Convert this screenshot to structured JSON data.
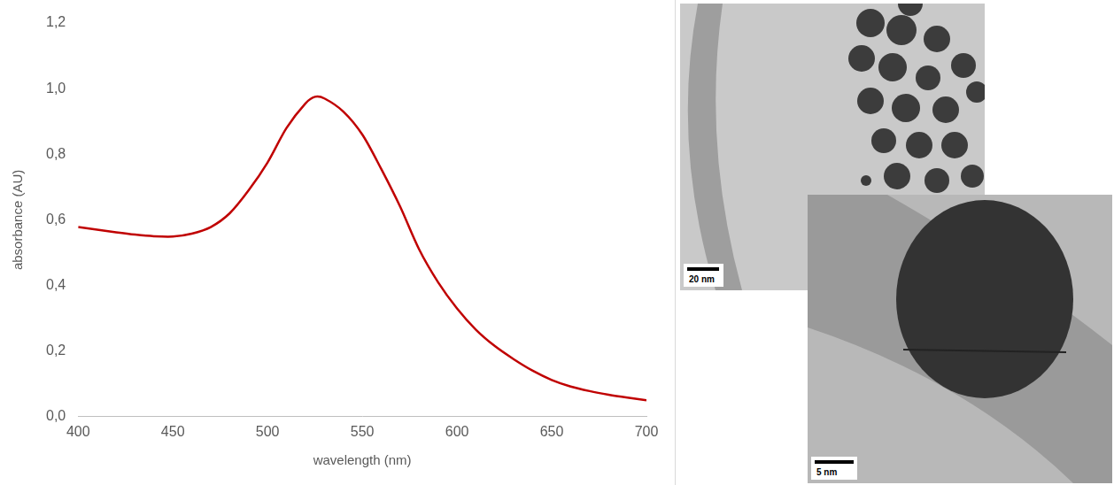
{
  "chart_data": {
    "type": "line",
    "x": [
      400,
      410,
      420,
      430,
      440,
      450,
      460,
      470,
      480,
      490,
      500,
      510,
      520,
      525,
      530,
      540,
      550,
      560,
      570,
      580,
      590,
      600,
      610,
      620,
      630,
      640,
      650,
      660,
      670,
      680,
      690,
      700
    ],
    "values": [
      0.578,
      0.57,
      0.562,
      0.555,
      0.55,
      0.549,
      0.558,
      0.578,
      0.62,
      0.69,
      0.775,
      0.88,
      0.955,
      0.975,
      0.97,
      0.93,
      0.86,
      0.755,
      0.64,
      0.51,
      0.41,
      0.33,
      0.265,
      0.215,
      0.175,
      0.14,
      0.112,
      0.092,
      0.078,
      0.067,
      0.058,
      0.05
    ],
    "color": "#c00000",
    "x_label": "wavelength (nm)",
    "y_label": "absorbance (AU)",
    "xlim": [
      400,
      700
    ],
    "xticks": [
      400,
      450,
      500,
      550,
      600,
      650,
      700
    ],
    "ylim": [
      0,
      1.2
    ],
    "yticks": [
      {
        "value": 0,
        "label": "0,0"
      },
      {
        "value": 0.2,
        "label": "0,2"
      },
      {
        "value": 0.4,
        "label": "0,4"
      },
      {
        "value": 0.6,
        "label": "0,6"
      },
      {
        "value": 0.8,
        "label": "0,8"
      },
      {
        "value": 1.0,
        "label": "1,0"
      },
      {
        "value": 1.2,
        "label": "1,2"
      }
    ],
    "grid": false
  },
  "images": [
    {
      "scale_bar": "20 nm"
    },
    {
      "scale_bar": "5 nm"
    }
  ]
}
